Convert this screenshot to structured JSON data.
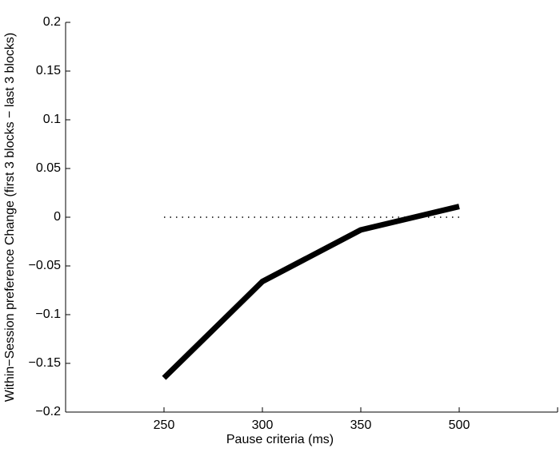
{
  "chart_data": {
    "type": "line",
    "x_label": "Pause criteria (ms)",
    "y_label": "Within−Session preference Change (first 3 blocks − last 3 blocks)",
    "categories": [
      "250",
      "300",
      "350",
      "500"
    ],
    "series": [
      {
        "color": "#000000",
        "values": [
          -0.165,
          -0.066,
          -0.013,
          0.011
        ]
      }
    ],
    "reference_line": 0,
    "ylim": [
      -0.2,
      0.2
    ],
    "yticks": [
      {
        "value": -0.2,
        "label": "−0.2"
      },
      {
        "value": -0.15,
        "label": "−0.15"
      },
      {
        "value": -0.1,
        "label": "−0.1"
      },
      {
        "value": -0.05,
        "label": "−0.05"
      },
      0,
      0.05,
      0.1,
      0.15,
      0.2
    ]
  }
}
